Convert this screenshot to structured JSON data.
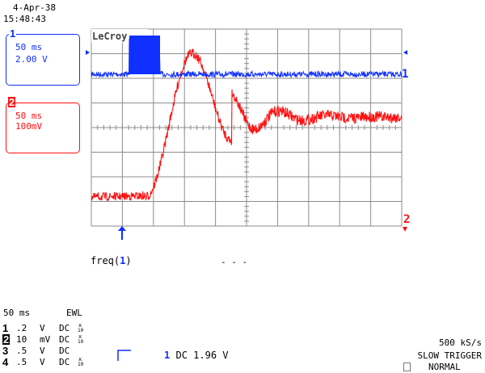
{
  "header": {
    "date": "4-Apr-38",
    "time": "15:48:43"
  },
  "brand": "LeCroy",
  "colors": {
    "ch1": "#1030ff",
    "ch2": "#ff1010",
    "grid": "#8c8c8c",
    "text": "#000000"
  },
  "trace_boxes": [
    {
      "number": "1",
      "timebase": "50 ms",
      "scale": "2.00 V"
    },
    {
      "number": "2",
      "timebase": "50 ms",
      "scale": "100mV"
    }
  ],
  "markers": {
    "ch1_label": "1",
    "ch2_label": "2"
  },
  "measurement": {
    "label": "freq(",
    "channel": "1",
    "close": ")",
    "value": "- - -"
  },
  "timebase": {
    "value": "50 ms",
    "mode": "EWL"
  },
  "channels": [
    {
      "num": "1",
      "scale": ".2",
      "unit": "V",
      "coupling": "DC",
      "sup": "x",
      "sub": "10"
    },
    {
      "num": "2",
      "scale": "10",
      "unit": "mV",
      "coupling": "DC",
      "sup": "x",
      "sub": "10"
    },
    {
      "num": "3",
      "scale": ".5",
      "unit": "V",
      "coupling": "DC",
      "sup": "",
      "sub": ""
    },
    {
      "num": "4",
      "scale": ".5",
      "unit": "V",
      "coupling": "DC",
      "sup": "x",
      "sub": "10"
    }
  ],
  "trigger": {
    "channel": "1",
    "coupling": "DC",
    "level": "1.96 V"
  },
  "acquisition": {
    "sample_rate": "500 kS/s",
    "trigger_mode": "SLOW TRIGGER",
    "trigger_state": "NORMAL"
  }
}
